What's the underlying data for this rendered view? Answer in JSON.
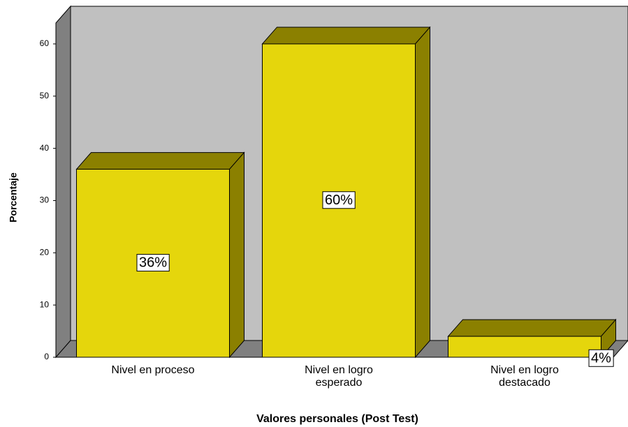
{
  "chart_data": {
    "type": "bar3d",
    "x_label": "Valores personales (Post Test)",
    "y_label": "Porcentaje",
    "categories": [
      "Nivel en proceso",
      "Nivel en logro esperado",
      "Nivel en logro destacado"
    ],
    "values": [
      36,
      60,
      4
    ],
    "value_labels": [
      "36%",
      "60%",
      "4%"
    ],
    "color": "#e5d60c",
    "ylim": [
      0,
      64
    ],
    "yticks": [
      0,
      10,
      20,
      30,
      40,
      50,
      60
    ]
  }
}
